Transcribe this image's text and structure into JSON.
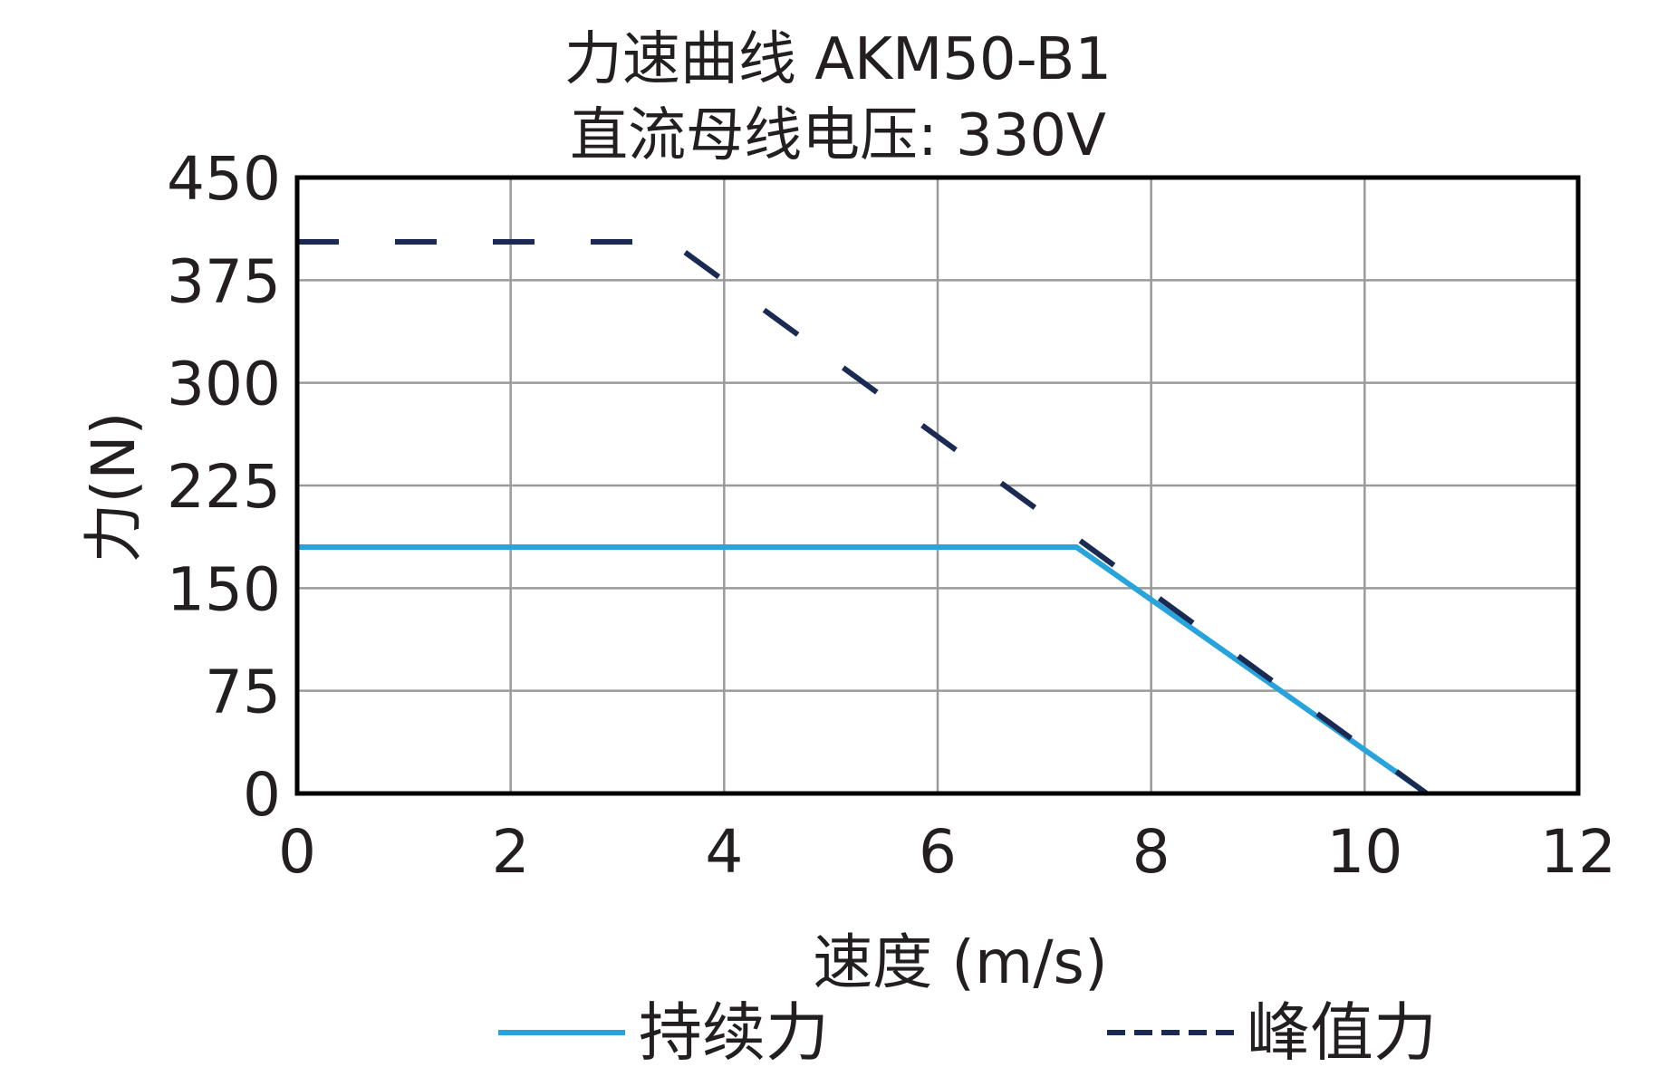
{
  "chart_data": {
    "type": "line",
    "title": "力速曲线 AKM50-B1",
    "subtitle": "直流母线电压: 330V",
    "xlabel": "速度 (m/s)",
    "ylabel": "力(N)",
    "xlim": [
      0,
      12
    ],
    "ylim": [
      0,
      450
    ],
    "xticks": [
      "0",
      "2",
      "4",
      "6",
      "8",
      "10",
      "12"
    ],
    "yticks": [
      "0",
      "75",
      "150",
      "225",
      "300",
      "375",
      "450"
    ],
    "grid": true,
    "legend_position": "bottom",
    "series": [
      {
        "name": "持续力",
        "style": "solid",
        "color": "#29a3db",
        "x": [
          0,
          7.3,
          10.58
        ],
        "y": [
          180,
          180,
          0
        ]
      },
      {
        "name": "峰值力",
        "style": "dashed",
        "color": "#1a2a52",
        "x": [
          0,
          3.5,
          10.58
        ],
        "y": [
          403,
          403,
          0
        ]
      }
    ]
  }
}
